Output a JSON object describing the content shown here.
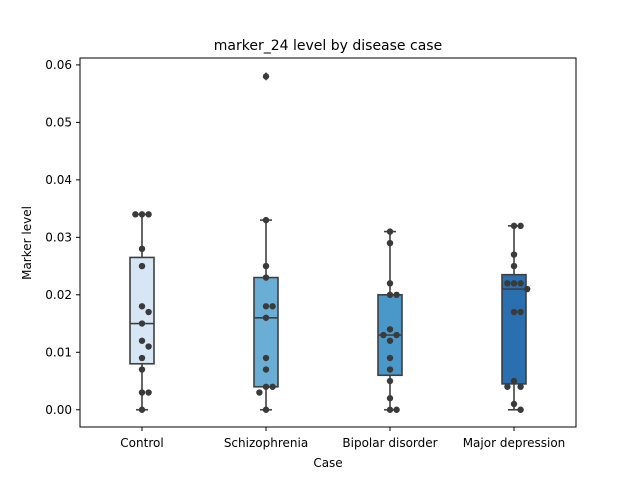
{
  "chart_data": {
    "type": "box",
    "title": "marker_24 level by disease case",
    "xlabel": "Case",
    "ylabel": "Marker level",
    "ylim": [
      -0.003,
      0.0612
    ],
    "yticks": [
      0.0,
      0.01,
      0.02,
      0.03,
      0.04,
      0.05,
      0.06
    ],
    "ytick_labels": [
      "0.00",
      "0.01",
      "0.02",
      "0.03",
      "0.04",
      "0.05",
      "0.06"
    ],
    "categories": [
      "Control",
      "Schizophrenia",
      "Bipolar disorder",
      "Major depression"
    ],
    "colors": [
      "#d6e6f4",
      "#6aaed6",
      "#4a98c9",
      "#2a6fb0"
    ],
    "boxes": [
      {
        "q1": 0.008,
        "median": 0.015,
        "q3": 0.0265,
        "whisker_low": 0.0,
        "whisker_high": 0.034,
        "outliers": []
      },
      {
        "q1": 0.004,
        "median": 0.016,
        "q3": 0.023,
        "whisker_low": 0.0,
        "whisker_high": 0.033,
        "outliers": [
          0.058
        ]
      },
      {
        "q1": 0.006,
        "median": 0.013,
        "q3": 0.02,
        "whisker_low": 0.0,
        "whisker_high": 0.031,
        "outliers": []
      },
      {
        "q1": 0.0045,
        "median": 0.021,
        "q3": 0.0235,
        "whisker_low": 0.0,
        "whisker_high": 0.032,
        "outliers": []
      }
    ],
    "points": [
      [
        0.034,
        0.034,
        0.034,
        0.028,
        0.025,
        0.018,
        0.017,
        0.015,
        0.012,
        0.011,
        0.009,
        0.007,
        0.003,
        0.003,
        0.0
      ],
      [
        0.058,
        0.033,
        0.025,
        0.023,
        0.018,
        0.018,
        0.016,
        0.009,
        0.007,
        0.004,
        0.004,
        0.003,
        0.0
      ],
      [
        0.031,
        0.029,
        0.022,
        0.02,
        0.02,
        0.014,
        0.013,
        0.013,
        0.012,
        0.009,
        0.007,
        0.005,
        0.002,
        0.0,
        0.0
      ],
      [
        0.032,
        0.032,
        0.027,
        0.025,
        0.022,
        0.022,
        0.022,
        0.021,
        0.017,
        0.017,
        0.005,
        0.004,
        0.004,
        0.001,
        0.0
      ]
    ],
    "grid": false,
    "legend": "none"
  }
}
